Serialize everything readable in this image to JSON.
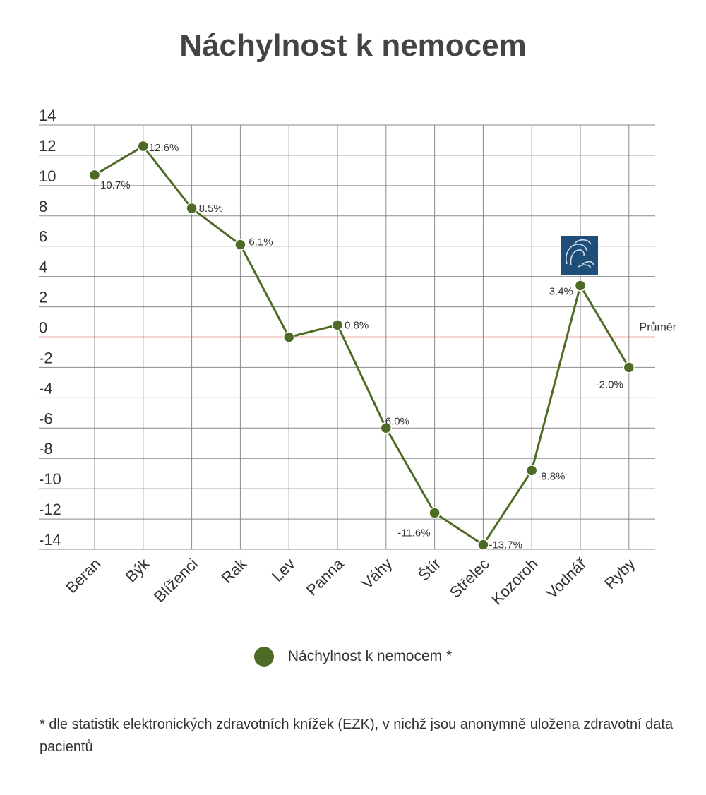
{
  "chart_data": {
    "type": "line",
    "title": "Náchylnost k nemocem",
    "categories": [
      "Beran",
      "Býk",
      "Blíženci",
      "Rak",
      "Lev",
      "Panna",
      "Váhy",
      "Štír",
      "Střelec",
      "Kozoroh",
      "Vodnář",
      "Ryby"
    ],
    "series": [
      {
        "name": "Náchylnost k nemocem *",
        "values": [
          10.7,
          12.6,
          8.5,
          6.1,
          0,
          0.8,
          -6.0,
          -11.6,
          -13.7,
          -8.8,
          3.4,
          -2.0
        ],
        "data_labels": [
          "10.7%",
          "12.6%",
          "8.5%",
          "6.1%",
          "",
          "0.8%",
          "-6.0%",
          "-11.6%",
          "-13.7%",
          "-8.8%",
          "3.4%",
          "-2.0%"
        ],
        "color": "#4e6b25"
      }
    ],
    "ylim": [
      -14,
      14
    ],
    "yticks": [
      14,
      12,
      10,
      8,
      6,
      4,
      2,
      0,
      -2,
      -4,
      -6,
      -8,
      -10,
      -12,
      -14
    ],
    "grid": true,
    "legend": "bottom-center",
    "reference_line": {
      "value": 0,
      "label": "Průměr",
      "color": "#d9534f"
    },
    "annotation_icon": {
      "category": "Vodnář",
      "name": "aquarius-sign-icon",
      "color": "#1f4e79"
    },
    "xlabel": "",
    "ylabel": ""
  },
  "footnote": "* dle statistik elektronických zdravotních knížek (EZK), v nichž jsou anonymně uložena zdravotní data pacientů"
}
